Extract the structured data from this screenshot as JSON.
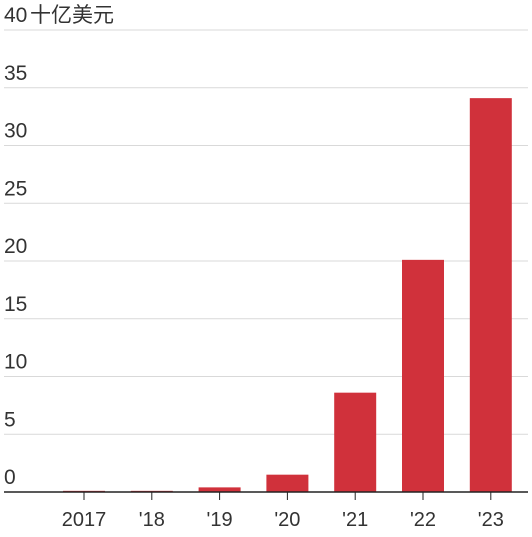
{
  "chart_data": {
    "type": "bar",
    "categories": [
      "2017",
      "'18",
      "'19",
      "'20",
      "'21",
      "'22",
      "'23"
    ],
    "values": [
      0.1,
      0.1,
      0.4,
      1.5,
      8.6,
      20.1,
      34.1
    ],
    "ylim": [
      0,
      40
    ],
    "yticks": [
      {
        "value": 0,
        "label": "0"
      },
      {
        "value": 5,
        "label": "5"
      },
      {
        "value": 10,
        "label": "10"
      },
      {
        "value": 15,
        "label": "15"
      },
      {
        "value": 20,
        "label": "20"
      },
      {
        "value": 25,
        "label": "25"
      },
      {
        "value": 30,
        "label": "30"
      },
      {
        "value": 35,
        "label": "35"
      },
      {
        "value": 40,
        "label": "40"
      }
    ],
    "top_tick_unit": "十亿美元",
    "grid": true,
    "bar_color": "#d0313b",
    "grid_color": "#d9d9d9",
    "axis_color": "#222222"
  }
}
